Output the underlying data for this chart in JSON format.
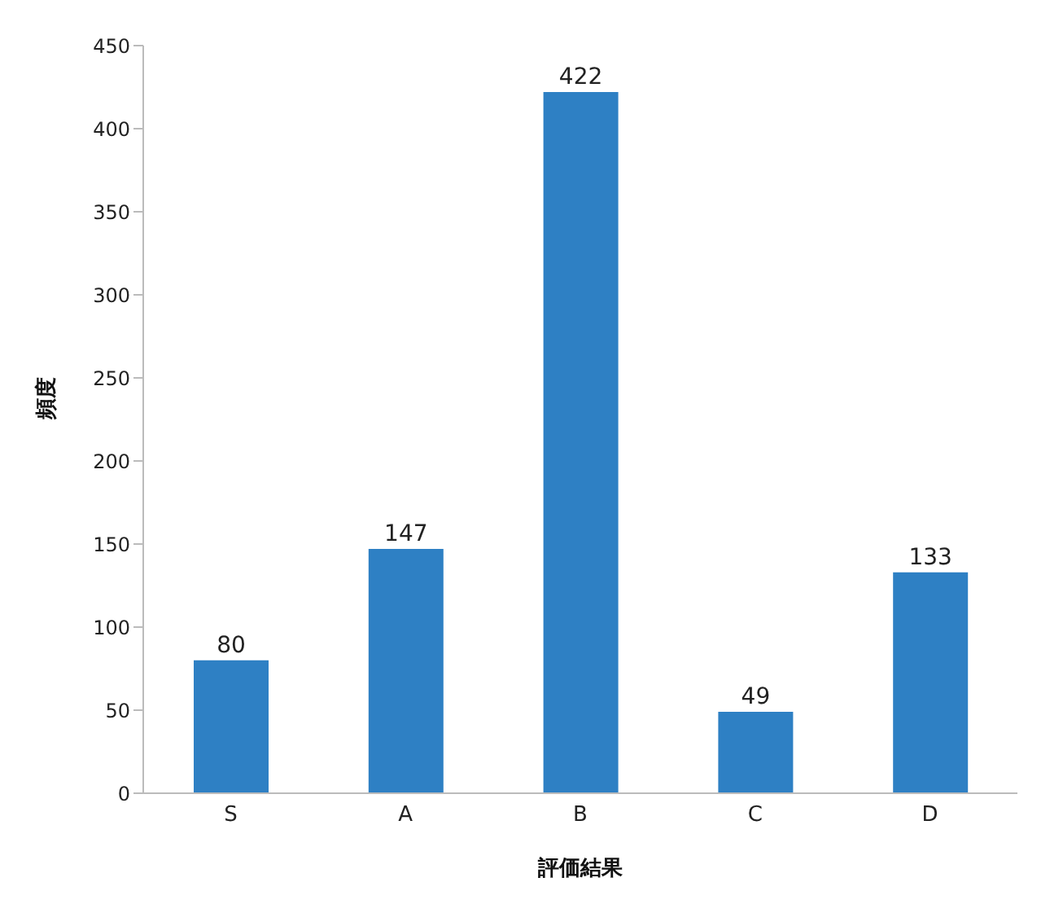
{
  "chart_data": {
    "type": "bar",
    "xlabel": "評価結果",
    "ylabel": "頻度",
    "categories": [
      "S",
      "A",
      "B",
      "C",
      "D"
    ],
    "values": [
      80,
      147,
      422,
      49,
      133
    ],
    "color": "#2e80c4",
    "ylim": [
      0,
      450
    ],
    "yticks": [
      0,
      50,
      100,
      150,
      200,
      250,
      300,
      350,
      400,
      450
    ],
    "grid": false,
    "data_labels": true
  }
}
